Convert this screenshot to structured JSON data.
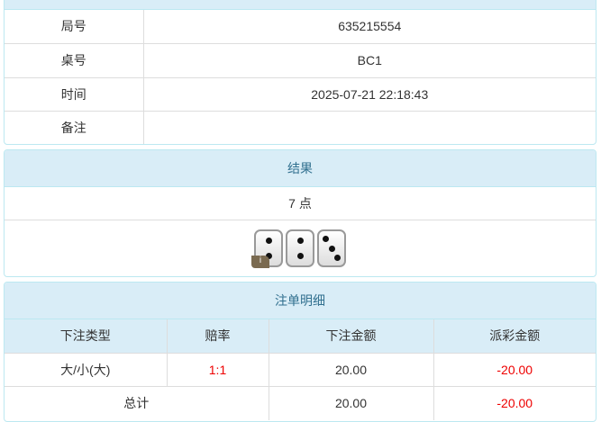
{
  "info": {
    "rows": [
      {
        "label": "局号",
        "value": "635215554"
      },
      {
        "label": "桌号",
        "value": "BC1"
      },
      {
        "label": "时间",
        "value": "2025-07-21 22:18:43"
      },
      {
        "label": "备注",
        "value": ""
      }
    ]
  },
  "result": {
    "title": "结果",
    "points": "7 点",
    "dice": [
      2,
      2,
      3
    ],
    "info_badge": "i"
  },
  "bets": {
    "title": "注单明细",
    "headers": [
      "下注类型",
      "赔率",
      "下注金额",
      "派彩金额"
    ],
    "rows": [
      {
        "type": "大/小(大)",
        "odds": "1:1",
        "amount": "20.00",
        "payout": "-20.00"
      }
    ],
    "total": {
      "label": "总计",
      "amount": "20.00",
      "payout": "-20.00"
    }
  },
  "colors": {
    "header_bg": "#d9edf7",
    "header_text": "#31708f",
    "negative": "#e00000"
  }
}
